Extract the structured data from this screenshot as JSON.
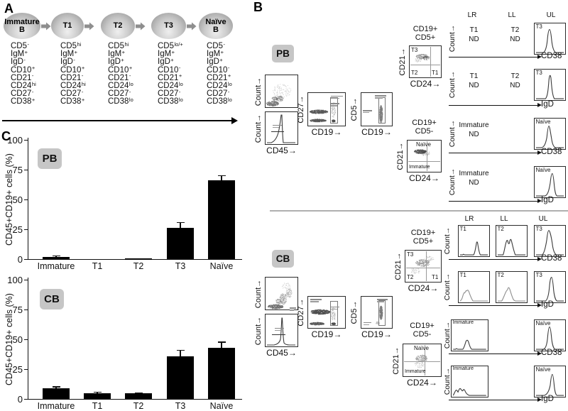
{
  "colors": {
    "badge_bg": "#c6c6c6",
    "bar": "#000000",
    "plot_border": "#2b2b2b",
    "curve": "#3a3a3a",
    "curve_light": "#8f8f8f",
    "divider": "#b0b0b0",
    "accent_gray": "#8e8e8e"
  },
  "panelA": {
    "label": "A",
    "stages": [
      {
        "name": "Immature B",
        "markers": [
          [
            "CD5",
            "-"
          ],
          [
            "IgM",
            "+"
          ],
          [
            "IgD",
            "-"
          ],
          [
            "CD10",
            "+"
          ],
          [
            "CD21",
            "-"
          ],
          [
            "CD24",
            "hi"
          ],
          [
            "CD27",
            "-"
          ],
          [
            "CD38",
            "+"
          ]
        ]
      },
      {
        "name": "T1",
        "markers": [
          [
            "CD5",
            "hi"
          ],
          [
            "IgM",
            "+"
          ],
          [
            "IgD",
            "-"
          ],
          [
            "CD10",
            "+"
          ],
          [
            "CD21",
            "-"
          ],
          [
            "CD24",
            "hi"
          ],
          [
            "CD27",
            "-"
          ],
          [
            "CD38",
            "+"
          ]
        ]
      },
      {
        "name": "T2",
        "markers": [
          [
            "CD5",
            "hi"
          ],
          [
            "IgM",
            "+"
          ],
          [
            "IgD",
            "+"
          ],
          [
            "CD10",
            "+"
          ],
          [
            "CD21",
            "-"
          ],
          [
            "CD24",
            "lo"
          ],
          [
            "CD27",
            "-"
          ],
          [
            "CD38",
            "lo"
          ]
        ]
      },
      {
        "name": "T3",
        "markers": [
          [
            "CD5",
            "lo/+"
          ],
          [
            "IgM",
            "+"
          ],
          [
            "IgD",
            "+"
          ],
          [
            "CD10",
            "-"
          ],
          [
            "CD21",
            "+"
          ],
          [
            "CD24",
            "lo"
          ],
          [
            "CD27",
            "-"
          ],
          [
            "CD38",
            "lo"
          ]
        ]
      },
      {
        "name": "Naïve B",
        "markers": [
          [
            "CD5",
            "-"
          ],
          [
            "IgM",
            "+"
          ],
          [
            "IgD",
            "+"
          ],
          [
            "CD10",
            "-"
          ],
          [
            "CD21",
            "+"
          ],
          [
            "CD24",
            "lo"
          ],
          [
            "CD27",
            "-"
          ],
          [
            "CD38",
            "lo"
          ]
        ]
      }
    ]
  },
  "panelB": {
    "label": "B",
    "col_headers": [
      "LR",
      "LL",
      "UL"
    ],
    "axis_labels": {
      "count": "Count→",
      "cd45": "CD45→",
      "cd19": "CD19→",
      "cd27": "CD27→",
      "cd5": "CD5→",
      "cd21": "CD21→",
      "cd24": "CD24→",
      "cd38": "CD38",
      "igd": "IgD"
    },
    "sections": [
      {
        "id": "PB",
        "badge": "PB",
        "gate_pos_title": [
          "CD19+",
          "CD5+"
        ],
        "gate_neg_title": [
          "CD19+",
          "CD5-"
        ],
        "quad_pos_labels": {
          "top_left": "T3",
          "bottom_left": "T2",
          "bottom_right": "T1"
        },
        "quad_neg_labels": {
          "top": "Naïve",
          "bottom": "Immature"
        },
        "rows": [
          {
            "axis": "CD38",
            "cells": [
              {
                "type": "nd",
                "label": "T1",
                "note": "ND"
              },
              {
                "type": "nd",
                "label": "T2",
                "note": "ND"
              },
              {
                "type": "hist",
                "label": "T3",
                "curve": "pb_t3_cd38"
              }
            ]
          },
          {
            "axis": "IgD",
            "cells": [
              {
                "type": "nd",
                "label": "T1",
                "note": "ND"
              },
              {
                "type": "nd",
                "label": "T2",
                "note": "ND"
              },
              {
                "type": "hist",
                "label": "T3",
                "curve": "pb_t3_igd"
              }
            ]
          },
          {
            "axis": "CD38",
            "cells": [
              {
                "type": "nd",
                "label": "Immature",
                "note": "ND",
                "wide": true
              },
              {
                "type": "empty"
              },
              {
                "type": "hist",
                "label": "Naïve",
                "curve": "pb_naive_cd38"
              }
            ]
          },
          {
            "axis": "IgD",
            "cells": [
              {
                "type": "nd",
                "label": "Immature",
                "note": "ND",
                "wide": true
              },
              {
                "type": "empty"
              },
              {
                "type": "hist",
                "label": "Naïve",
                "curve": "pb_naive_igd"
              }
            ]
          }
        ]
      },
      {
        "id": "CB",
        "badge": "CB",
        "gate_pos_title": [
          "CD19+",
          "CD5+"
        ],
        "gate_neg_title": [
          "CD19+",
          "CD5-"
        ],
        "quad_pos_labels": {
          "top_left": "T3",
          "bottom_left": "T2",
          "bottom_right": "T1"
        },
        "quad_neg_labels": {
          "top": "Naïve",
          "bottom": "Immature"
        },
        "rows": [
          {
            "axis": "CD38",
            "cells": [
              {
                "type": "hist",
                "label": "T1",
                "curve": "cb_t1_cd38"
              },
              {
                "type": "hist",
                "label": "T2",
                "curve": "cb_t2_cd38"
              },
              {
                "type": "hist",
                "label": "T3",
                "curve": "cb_t3_cd38"
              }
            ]
          },
          {
            "axis": "IgD",
            "cells": [
              {
                "type": "hist",
                "label": "T1",
                "curve": "cb_t1_igd"
              },
              {
                "type": "hist",
                "label": "T2",
                "curve": "cb_t2_igd"
              },
              {
                "type": "hist",
                "label": "T3",
                "curve": "cb_t3_igd"
              }
            ]
          },
          {
            "axis": "CD38",
            "cells": [
              {
                "type": "hist",
                "label": "Immature",
                "curve": "cb_imm_cd38",
                "wide": true
              },
              {
                "type": "empty"
              },
              {
                "type": "hist",
                "label": "Naïve",
                "curve": "cb_naive_cd38"
              }
            ]
          },
          {
            "axis": "IgD",
            "cells": [
              {
                "type": "hist",
                "label": "Immature",
                "curve": "cb_imm_igd",
                "wide": true
              },
              {
                "type": "empty"
              },
              {
                "type": "hist",
                "label": "Naïve",
                "curve": "cb_naive_igd"
              }
            ]
          }
        ]
      }
    ]
  },
  "panelC": {
    "label": "C"
  },
  "chart_data": [
    {
      "type": "bar",
      "group": "PB",
      "categories": [
        "Immature",
        "T1",
        "T2",
        "T3",
        "Naïve"
      ],
      "values": [
        1.5,
        0.2,
        0.5,
        26,
        66
      ],
      "errors": [
        1.5,
        0,
        0,
        5,
        4.5
      ],
      "ylabel": "CD45+CD19+ cells (%)",
      "xlabel": "",
      "ylim": [
        0,
        100
      ],
      "yticks": [
        0,
        25,
        50,
        75,
        100
      ],
      "bar_color": "#000000",
      "grid": false,
      "legend": "none"
    },
    {
      "type": "bar",
      "group": "CB",
      "categories": [
        "Immature",
        "T1",
        "T2",
        "T3",
        "Naïve"
      ],
      "values": [
        9,
        5,
        4.5,
        35.5,
        43
      ],
      "errors": [
        1.5,
        0.8,
        0.7,
        5.5,
        5
      ],
      "ylabel": "CD45+CD19+ cells (%)",
      "xlabel": "",
      "ylim": [
        0,
        100
      ],
      "yticks": [
        0,
        25,
        50,
        75,
        100
      ],
      "bar_color": "#000000",
      "grid": false,
      "legend": "none"
    }
  ]
}
